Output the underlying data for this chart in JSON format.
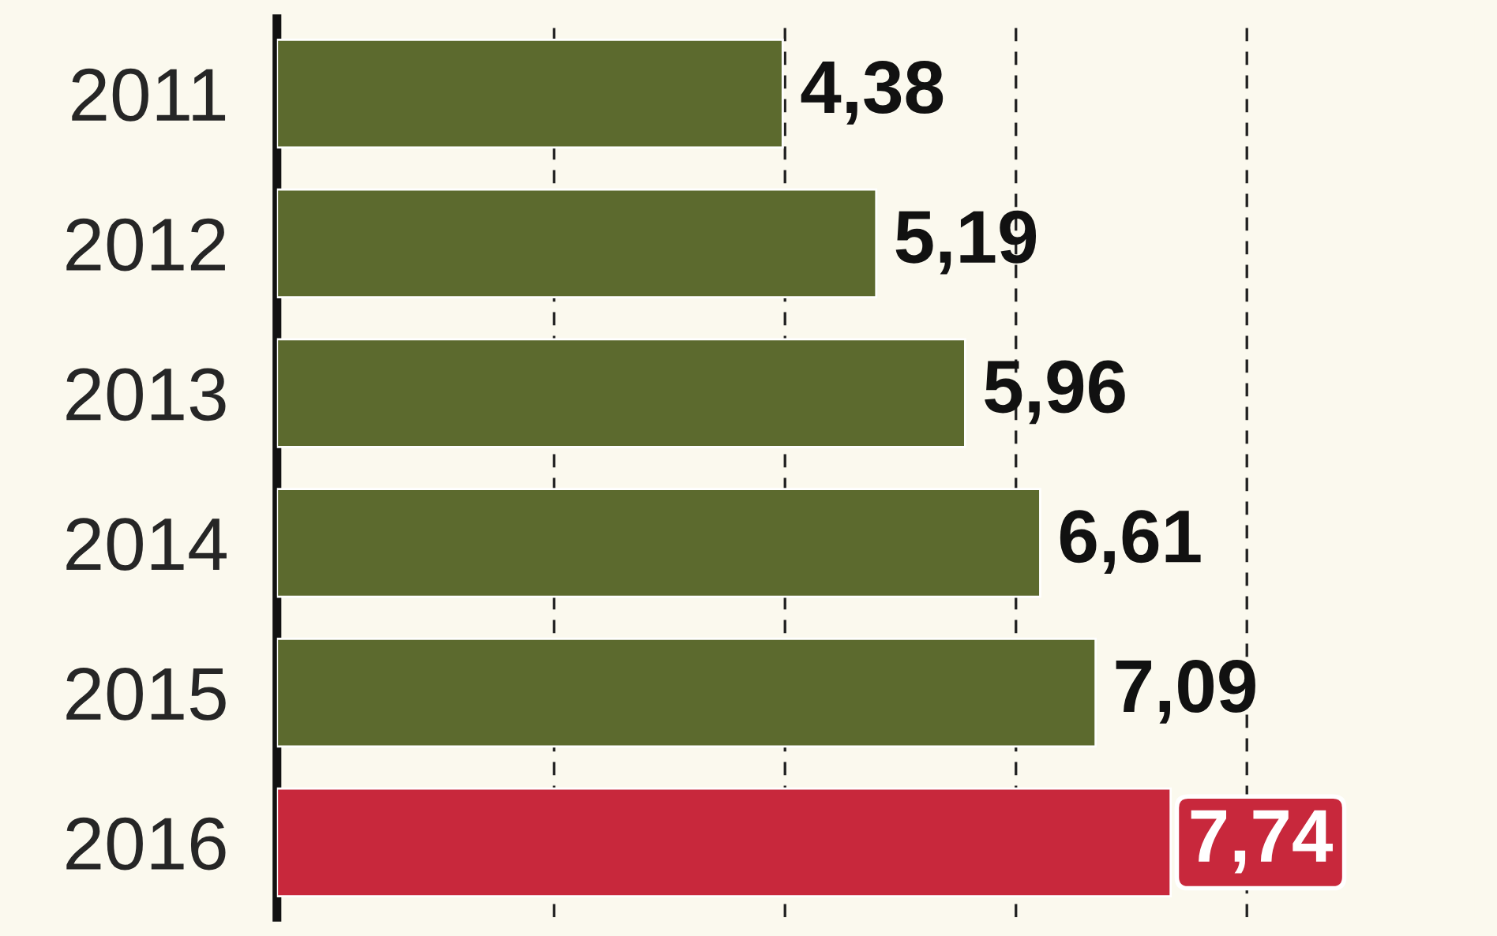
{
  "chart_data": {
    "type": "bar",
    "orientation": "horizontal",
    "categories": [
      "2011",
      "2012",
      "2013",
      "2014",
      "2015",
      "2016"
    ],
    "values": [
      4.38,
      5.19,
      5.96,
      6.61,
      7.09,
      7.74
    ],
    "value_labels": [
      "4,38",
      "5,19",
      "5,96",
      "6,61",
      "7,09",
      "7,74"
    ],
    "colors": [
      "#5c6a2e",
      "#5c6a2e",
      "#5c6a2e",
      "#5c6a2e",
      "#5c6a2e",
      "#c8283c"
    ],
    "xticks": [
      {
        "value": 2.4,
        "label": null
      },
      {
        "value": 4.4,
        "label": null
      },
      {
        "value": 6.4,
        "label": null
      },
      {
        "value": 8.4,
        "label": null
      }
    ],
    "grid": "x"
  }
}
